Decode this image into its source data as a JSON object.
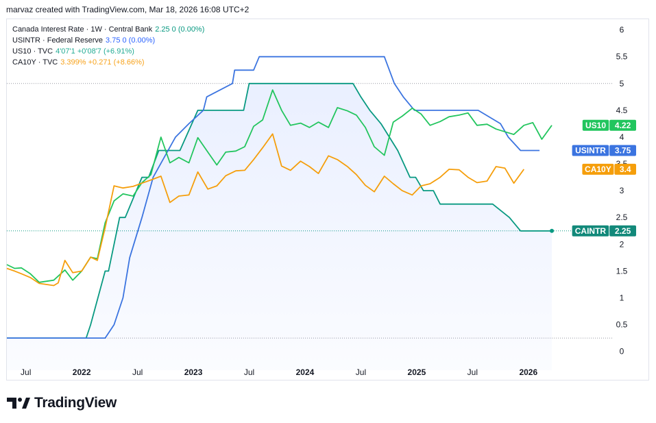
{
  "header": {
    "attribution": "marvaz created with TradingView.com, Mar 18, 2026 16:08 UTC+2"
  },
  "legend": [
    {
      "name": "Canada Interest Rate · 1W · Central Bank",
      "value": "2.25  0 (0.00%)",
      "color": "#089981"
    },
    {
      "name": "USINTR · Federal Reserve",
      "value": "3.75  0 (0.00%)",
      "color": "#2962ff"
    },
    {
      "name": "US10 · TVC",
      "value": "4'07'1  +0'08'7 (+6.91%)",
      "color": "#22ab94"
    },
    {
      "name": "CA10Y · TVC",
      "value": "3.399%  +0.271 (+8.66%)",
      "color": "#f7a21b"
    }
  ],
  "price_tags": [
    {
      "label": "US10",
      "value": "4.22",
      "color": "#22c55e"
    },
    {
      "label": "USINTR",
      "value": "3.75",
      "color": "#3b74e0"
    },
    {
      "label": "CA10Y",
      "value": "3.4",
      "color": "#f59e0b"
    },
    {
      "label": "CAINTR",
      "value": "2.25",
      "color": "#12897a"
    }
  ],
  "brand": {
    "name": "TradingView"
  },
  "chart_data": {
    "type": "line",
    "x_ticks": [
      {
        "t": 2021.5,
        "label": "Jul"
      },
      {
        "t": 2022.0,
        "label": "2022",
        "bold": true
      },
      {
        "t": 2022.5,
        "label": "Jul"
      },
      {
        "t": 2023.0,
        "label": "2023",
        "bold": true
      },
      {
        "t": 2023.5,
        "label": "Jul"
      },
      {
        "t": 2024.0,
        "label": "2024",
        "bold": true
      },
      {
        "t": 2024.5,
        "label": "Jul"
      },
      {
        "t": 2025.0,
        "label": "2025",
        "bold": true
      },
      {
        "t": 2025.5,
        "label": "Jul"
      },
      {
        "t": 2026.0,
        "label": "2026",
        "bold": true
      }
    ],
    "xlim": [
      2021.33,
      2026.75
    ],
    "y_ticks": [
      "0",
      "0.5",
      "1",
      "1.5",
      "2",
      "2.5",
      "3",
      "3.5",
      "4",
      "4.5",
      "5",
      "5.5",
      "6"
    ],
    "ylim": [
      -0.35,
      6.2
    ],
    "reference_lines": [
      5.0,
      0.25,
      2.25
    ],
    "series": [
      {
        "name": "CAINTR",
        "color": "#089981",
        "filled": true,
        "points": [
          [
            2021.0,
            0.25
          ],
          [
            2022.04,
            0.25
          ],
          [
            2022.08,
            0.5
          ],
          [
            2022.21,
            1.5
          ],
          [
            2022.24,
            1.5
          ],
          [
            2022.34,
            2.5
          ],
          [
            2022.39,
            2.5
          ],
          [
            2022.54,
            3.25
          ],
          [
            2022.6,
            3.25
          ],
          [
            2022.69,
            3.75
          ],
          [
            2022.88,
            3.75
          ],
          [
            2023.04,
            4.5
          ],
          [
            2023.2,
            4.5
          ],
          [
            2023.45,
            4.5
          ],
          [
            2023.5,
            5.0
          ],
          [
            2024.43,
            5.0
          ],
          [
            2024.5,
            4.75
          ],
          [
            2024.58,
            4.5
          ],
          [
            2024.68,
            4.25
          ],
          [
            2024.83,
            3.75
          ],
          [
            2024.94,
            3.25
          ],
          [
            2024.99,
            3.25
          ],
          [
            2025.06,
            3.0
          ],
          [
            2025.15,
            3.0
          ],
          [
            2025.21,
            2.75
          ],
          [
            2025.68,
            2.75
          ],
          [
            2025.83,
            2.5
          ],
          [
            2025.93,
            2.25
          ],
          [
            2026.21,
            2.25
          ]
        ]
      },
      {
        "name": "USINTR",
        "color": "#3b74e0",
        "filled": false,
        "points": [
          [
            2021.0,
            0.25
          ],
          [
            2022.21,
            0.25
          ],
          [
            2022.29,
            0.5
          ],
          [
            2022.37,
            1.0
          ],
          [
            2022.43,
            1.75
          ],
          [
            2022.54,
            2.5
          ],
          [
            2022.64,
            3.25
          ],
          [
            2022.84,
            4.0
          ],
          [
            2022.96,
            4.25
          ],
          [
            2023.09,
            4.5
          ],
          [
            2023.12,
            4.75
          ],
          [
            2023.35,
            5.0
          ],
          [
            2023.37,
            5.25
          ],
          [
            2023.54,
            5.25
          ],
          [
            2023.59,
            5.5
          ],
          [
            2024.71,
            5.5
          ],
          [
            2024.8,
            5.0
          ],
          [
            2024.88,
            4.75
          ],
          [
            2024.98,
            4.5
          ],
          [
            2025.55,
            4.5
          ],
          [
            2025.75,
            4.25
          ],
          [
            2025.82,
            4.0
          ],
          [
            2025.93,
            3.75
          ],
          [
            2026.1,
            3.75
          ]
        ]
      },
      {
        "name": "US10",
        "color": "#22c55e",
        "filled": false,
        "points": [
          [
            2021.33,
            1.62
          ],
          [
            2021.4,
            1.55
          ],
          [
            2021.46,
            1.56
          ],
          [
            2021.54,
            1.45
          ],
          [
            2021.62,
            1.29
          ],
          [
            2021.75,
            1.33
          ],
          [
            2021.85,
            1.52
          ],
          [
            2021.92,
            1.33
          ],
          [
            2022.0,
            1.5
          ],
          [
            2022.08,
            1.76
          ],
          [
            2022.14,
            1.73
          ],
          [
            2022.21,
            2.4
          ],
          [
            2022.29,
            2.81
          ],
          [
            2022.37,
            2.94
          ],
          [
            2022.46,
            2.9
          ],
          [
            2022.54,
            3.15
          ],
          [
            2022.62,
            3.3
          ],
          [
            2022.71,
            4.0
          ],
          [
            2022.79,
            3.52
          ],
          [
            2022.87,
            3.62
          ],
          [
            2022.96,
            3.52
          ],
          [
            2023.04,
            3.99
          ],
          [
            2023.13,
            3.72
          ],
          [
            2023.21,
            3.48
          ],
          [
            2023.29,
            3.72
          ],
          [
            2023.38,
            3.74
          ],
          [
            2023.46,
            3.82
          ],
          [
            2023.54,
            4.2
          ],
          [
            2023.62,
            4.32
          ],
          [
            2023.71,
            4.88
          ],
          [
            2023.79,
            4.5
          ],
          [
            2023.87,
            4.22
          ],
          [
            2023.96,
            4.26
          ],
          [
            2024.04,
            4.18
          ],
          [
            2024.12,
            4.28
          ],
          [
            2024.21,
            4.18
          ],
          [
            2024.29,
            4.55
          ],
          [
            2024.38,
            4.49
          ],
          [
            2024.46,
            4.41
          ],
          [
            2024.54,
            4.18
          ],
          [
            2024.62,
            3.82
          ],
          [
            2024.71,
            3.66
          ],
          [
            2024.79,
            4.28
          ],
          [
            2024.87,
            4.39
          ],
          [
            2024.96,
            4.54
          ],
          [
            2025.04,
            4.43
          ],
          [
            2025.12,
            4.22
          ],
          [
            2025.21,
            4.29
          ],
          [
            2025.29,
            4.38
          ],
          [
            2025.38,
            4.41
          ],
          [
            2025.46,
            4.45
          ],
          [
            2025.54,
            4.22
          ],
          [
            2025.63,
            4.24
          ],
          [
            2025.71,
            4.15
          ],
          [
            2025.79,
            4.1
          ],
          [
            2025.87,
            4.05
          ],
          [
            2025.96,
            4.22
          ],
          [
            2026.04,
            4.27
          ],
          [
            2026.12,
            3.96
          ],
          [
            2026.21,
            4.22
          ]
        ]
      },
      {
        "name": "CA10Y",
        "color": "#f59e0b",
        "filled": false,
        "points": [
          [
            2021.33,
            1.55
          ],
          [
            2021.4,
            1.5
          ],
          [
            2021.46,
            1.45
          ],
          [
            2021.54,
            1.38
          ],
          [
            2021.62,
            1.27
          ],
          [
            2021.75,
            1.23
          ],
          [
            2021.79,
            1.28
          ],
          [
            2021.85,
            1.7
          ],
          [
            2021.92,
            1.47
          ],
          [
            2022.0,
            1.5
          ],
          [
            2022.08,
            1.76
          ],
          [
            2022.14,
            1.7
          ],
          [
            2022.21,
            2.31
          ],
          [
            2022.29,
            3.09
          ],
          [
            2022.37,
            3.05
          ],
          [
            2022.46,
            3.08
          ],
          [
            2022.54,
            3.14
          ],
          [
            2022.62,
            3.2
          ],
          [
            2022.71,
            3.27
          ],
          [
            2022.79,
            2.78
          ],
          [
            2022.87,
            2.9
          ],
          [
            2022.96,
            2.92
          ],
          [
            2023.04,
            3.35
          ],
          [
            2023.13,
            3.03
          ],
          [
            2023.21,
            3.09
          ],
          [
            2023.29,
            3.28
          ],
          [
            2023.38,
            3.37
          ],
          [
            2023.46,
            3.38
          ],
          [
            2023.54,
            3.58
          ],
          [
            2023.62,
            3.8
          ],
          [
            2023.71,
            4.06
          ],
          [
            2023.79,
            3.46
          ],
          [
            2023.87,
            3.38
          ],
          [
            2023.96,
            3.55
          ],
          [
            2024.04,
            3.45
          ],
          [
            2024.12,
            3.32
          ],
          [
            2024.21,
            3.65
          ],
          [
            2024.29,
            3.58
          ],
          [
            2024.38,
            3.45
          ],
          [
            2024.46,
            3.3
          ],
          [
            2024.54,
            3.1
          ],
          [
            2024.62,
            2.98
          ],
          [
            2024.71,
            3.27
          ],
          [
            2024.79,
            3.13
          ],
          [
            2024.87,
            3.0
          ],
          [
            2024.96,
            2.92
          ],
          [
            2025.04,
            3.09
          ],
          [
            2025.12,
            3.13
          ],
          [
            2025.21,
            3.25
          ],
          [
            2025.29,
            3.4
          ],
          [
            2025.38,
            3.39
          ],
          [
            2025.46,
            3.25
          ],
          [
            2025.54,
            3.15
          ],
          [
            2025.63,
            3.18
          ],
          [
            2025.71,
            3.45
          ],
          [
            2025.79,
            3.42
          ],
          [
            2025.87,
            3.14
          ],
          [
            2025.96,
            3.4
          ]
        ]
      }
    ]
  }
}
